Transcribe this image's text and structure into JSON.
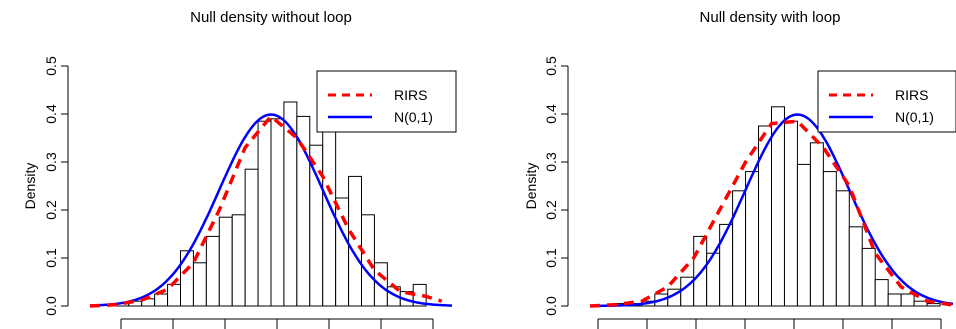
{
  "chart_data": [
    {
      "type": "bar",
      "title": "Null density without loop",
      "xlabel": "",
      "ylabel": "Density",
      "ylim": [
        0,
        0.5
      ],
      "yticks": [
        "0.0",
        "0.1",
        "0.2",
        "0.3",
        "0.4",
        "0.5"
      ],
      "xlim": [
        -3.5,
        3.5
      ],
      "legend_position": "top-right",
      "histogram": {
        "breaks": [
          -3.0,
          -2.75,
          -2.5,
          -2.25,
          -2.0,
          -1.75,
          -1.5,
          -1.25,
          -1.0,
          -0.75,
          -0.5,
          -0.25,
          0.0,
          0.25,
          0.5,
          0.75,
          1.0,
          1.25,
          1.5,
          1.75,
          2.0,
          2.25,
          2.5,
          2.75,
          3.0
        ],
        "density": [
          0.005,
          0.01,
          0.015,
          0.025,
          0.045,
          0.115,
          0.09,
          0.145,
          0.185,
          0.19,
          0.285,
          0.385,
          0.39,
          0.425,
          0.395,
          0.335,
          0.4,
          0.225,
          0.27,
          0.19,
          0.09,
          0.04,
          0.03,
          0.045
        ]
      },
      "series": [
        {
          "name": "RIRS",
          "color": "#ff0000",
          "style": "dashed",
          "x": [
            -3.5,
            -3.0,
            -2.5,
            -2.0,
            -1.5,
            -1.0,
            -0.5,
            0.0,
            0.5,
            1.0,
            1.5,
            2.0,
            2.5,
            3.0,
            3.3
          ],
          "y": [
            0.0,
            0.003,
            0.012,
            0.035,
            0.09,
            0.2,
            0.33,
            0.395,
            0.35,
            0.27,
            0.16,
            0.075,
            0.03,
            0.02,
            0.01
          ]
        },
        {
          "name": "N(0,1)",
          "color": "#0000ff",
          "style": "solid",
          "dist": "normal",
          "mean": 0,
          "sd": 1
        }
      ]
    },
    {
      "type": "bar",
      "title": "Null density with loop",
      "xlabel": "",
      "ylabel": "Density",
      "ylim": [
        0,
        0.5
      ],
      "yticks": [
        "0.0",
        "0.1",
        "0.2",
        "0.3",
        "0.4",
        "0.5"
      ],
      "xlim": [
        -4,
        3
      ],
      "legend_position": "top-right",
      "histogram": {
        "breaks": [
          -3.5,
          -3.25,
          -3.0,
          -2.75,
          -2.5,
          -2.25,
          -2.0,
          -1.75,
          -1.5,
          -1.25,
          -1.0,
          -0.75,
          -0.5,
          -0.25,
          0.0,
          0.25,
          0.5,
          0.75,
          1.0,
          1.25,
          1.5,
          1.75,
          2.0,
          2.25,
          2.5,
          2.75,
          3.0
        ],
        "density": [
          0.005,
          0.005,
          0.01,
          0.025,
          0.035,
          0.06,
          0.145,
          0.11,
          0.17,
          0.24,
          0.28,
          0.375,
          0.415,
          0.385,
          0.295,
          0.34,
          0.28,
          0.24,
          0.165,
          0.12,
          0.055,
          0.025,
          0.025,
          0.01,
          0.005,
          0.0
        ]
      },
      "series": [
        {
          "name": "RIRS",
          "color": "#ff0000",
          "style": "dashed",
          "x": [
            -4.0,
            -3.5,
            -3.0,
            -2.5,
            -2.0,
            -1.5,
            -1.0,
            -0.5,
            0.0,
            0.5,
            1.0,
            1.5,
            2.0,
            2.5,
            3.0
          ],
          "y": [
            0.0,
            0.003,
            0.01,
            0.04,
            0.1,
            0.2,
            0.3,
            0.38,
            0.385,
            0.33,
            0.25,
            0.11,
            0.04,
            0.01,
            0.002
          ]
        },
        {
          "name": "N(0,1)",
          "color": "#0000ff",
          "style": "solid",
          "dist": "normal",
          "mean": 0,
          "sd": 1
        }
      ]
    }
  ]
}
